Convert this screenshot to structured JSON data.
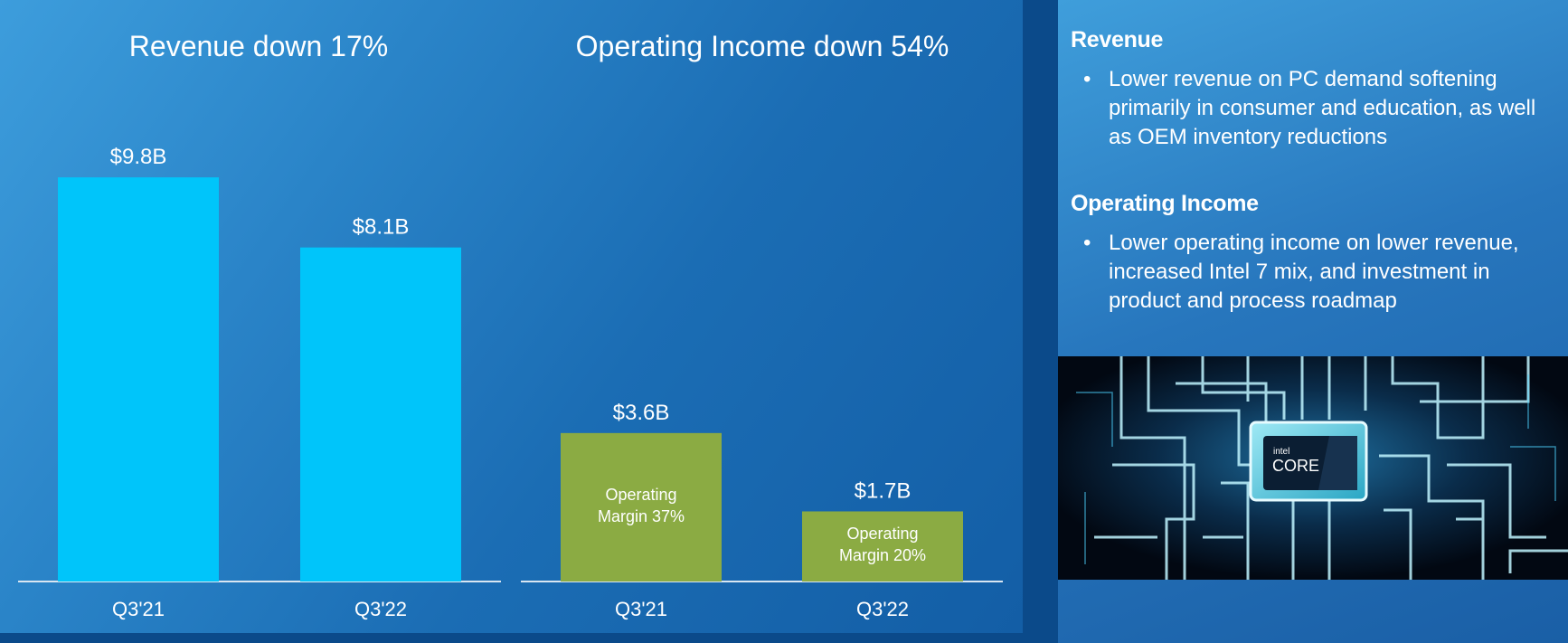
{
  "chart_data": [
    {
      "type": "bar",
      "title": "Revenue down 17%",
      "categories": [
        "Q3'21",
        "Q3'22"
      ],
      "values": [
        9.8,
        8.1
      ],
      "value_labels": [
        "$9.8B",
        "$8.1B"
      ],
      "unit": "$B",
      "ylim": [
        0,
        10
      ],
      "bar_color": "#00c5fa",
      "grid": false
    },
    {
      "type": "bar",
      "title": "Operating Income down 54%",
      "categories": [
        "Q3'21",
        "Q3'22"
      ],
      "values": [
        3.6,
        1.7
      ],
      "value_labels": [
        "$3.6B",
        "$1.7B"
      ],
      "inner_labels": [
        [
          "Operating",
          "Margin 37%"
        ],
        [
          "Operating",
          "Margin 20%"
        ]
      ],
      "unit": "$B",
      "ylim": [
        0,
        10
      ],
      "bar_color": "#8bab43",
      "grid": false
    }
  ],
  "sidebar": {
    "revenue": {
      "heading": "Revenue",
      "bullet": "Lower revenue on PC demand softening primarily in consumer and education, as well as OEM inventory reductions"
    },
    "operating_income": {
      "heading": "Operating Income",
      "bullet": "Lower operating income on lower revenue, increased Intel 7 mix, and investment in product and process roadmap"
    },
    "chip_image": {
      "brand_small": "intel",
      "brand_large": "CORE"
    }
  },
  "colors": {
    "background_gradient_start": "#3d9ddc",
    "background_gradient_end": "#135ea6",
    "revenue_bar": "#00c5fa",
    "operating_income_bar": "#8bab43",
    "baseline": "#d8e6f2"
  }
}
